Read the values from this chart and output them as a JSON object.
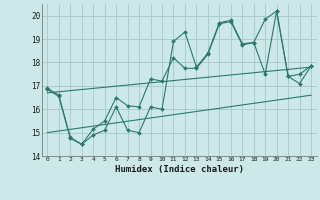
{
  "xlabel": "Humidex (Indice chaleur)",
  "bg_color": "#cce8e8",
  "grid_color": "#aacccc",
  "line_color": "#2a7a6a",
  "xlim": [
    -0.5,
    23.5
  ],
  "ylim": [
    14,
    20.5
  ],
  "xticks": [
    0,
    1,
    2,
    3,
    4,
    5,
    6,
    7,
    8,
    9,
    10,
    11,
    12,
    13,
    14,
    15,
    16,
    17,
    18,
    19,
    20,
    21,
    22,
    23
  ],
  "yticks": [
    14,
    15,
    16,
    17,
    18,
    19,
    20
  ],
  "line1_x": [
    0,
    1,
    2,
    3,
    4,
    5,
    6,
    7,
    8,
    9,
    10,
    11,
    12,
    13,
    14,
    15,
    16,
    17,
    18,
    19,
    20,
    21,
    22,
    23
  ],
  "line1_y": [
    16.9,
    16.6,
    14.8,
    14.5,
    14.9,
    15.1,
    16.1,
    15.1,
    15.0,
    16.1,
    16.0,
    18.9,
    19.3,
    17.8,
    18.4,
    19.7,
    19.8,
    18.8,
    18.85,
    17.5,
    20.2,
    17.4,
    17.1,
    17.85
  ],
  "line2_x": [
    0,
    1,
    2,
    3,
    4,
    5,
    6,
    7,
    8,
    9,
    10,
    11,
    12,
    13,
    14,
    15,
    16,
    17,
    18,
    19,
    20,
    21,
    22,
    23
  ],
  "line2_y": [
    16.85,
    16.55,
    14.75,
    14.5,
    15.15,
    15.5,
    16.5,
    16.15,
    16.1,
    17.3,
    17.2,
    18.2,
    17.75,
    17.75,
    18.35,
    19.65,
    19.75,
    18.75,
    18.85,
    19.85,
    20.2,
    17.4,
    17.5,
    17.85
  ],
  "line3_x": [
    0,
    23
  ],
  "line3_y": [
    16.7,
    17.8
  ],
  "line4_x": [
    0,
    23
  ],
  "line4_y": [
    15.0,
    16.6
  ]
}
